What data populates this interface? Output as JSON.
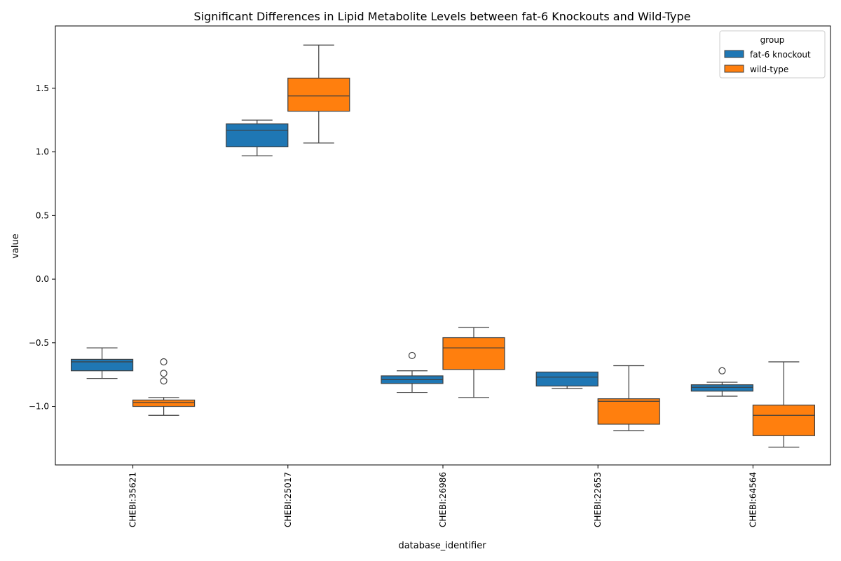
{
  "chart_data": {
    "type": "box",
    "title": "Significant Differences in Lipid Metabolite Levels between fat-6 Knockouts and Wild-Type",
    "xlabel": "database_identifier",
    "ylabel": "value",
    "ylim": [
      -1.46,
      1.99
    ],
    "yticks": [
      1.5,
      1.0,
      0.5,
      0.0,
      -0.5,
      -1.0
    ],
    "ytick_labels": [
      "1.5",
      "1.0",
      "0.5",
      "0.0",
      "−0.5",
      "−1.0"
    ],
    "categories": [
      "CHEBI:35621",
      "CHEBI:25017",
      "CHEBI:26986",
      "CHEBI:22653",
      "CHEBI:64564"
    ],
    "legend": {
      "title": "group",
      "position": "top-right"
    },
    "series": [
      {
        "name": "fat-6 knockout",
        "color": "#1f77b4",
        "boxes": [
          {
            "whislo": -0.78,
            "q1": -0.72,
            "med": -0.65,
            "q3": -0.63,
            "whishi": -0.54,
            "fliers": []
          },
          {
            "whislo": 0.97,
            "q1": 1.04,
            "med": 1.17,
            "q3": 1.22,
            "whishi": 1.25,
            "fliers": []
          },
          {
            "whislo": -0.89,
            "q1": -0.82,
            "med": -0.79,
            "q3": -0.76,
            "whishi": -0.72,
            "fliers": [
              -0.6
            ]
          },
          {
            "whislo": -0.86,
            "q1": -0.84,
            "med": -0.77,
            "q3": -0.73,
            "whishi": -0.73,
            "fliers": []
          },
          {
            "whislo": -0.92,
            "q1": -0.88,
            "med": -0.85,
            "q3": -0.83,
            "whishi": -0.81,
            "fliers": [
              -0.72
            ]
          }
        ]
      },
      {
        "name": "wild-type",
        "color": "#ff7f0e",
        "boxes": [
          {
            "whislo": -1.07,
            "q1": -1.0,
            "med": -0.97,
            "q3": -0.95,
            "whishi": -0.93,
            "fliers": [
              -0.65,
              -0.74,
              -0.8
            ]
          },
          {
            "whislo": 1.07,
            "q1": 1.32,
            "med": 1.44,
            "q3": 1.58,
            "whishi": 1.84,
            "fliers": []
          },
          {
            "whislo": -0.93,
            "q1": -0.71,
            "med": -0.54,
            "q3": -0.46,
            "whishi": -0.38,
            "fliers": []
          },
          {
            "whislo": -1.19,
            "q1": -1.14,
            "med": -0.96,
            "q3": -0.94,
            "whishi": -0.68,
            "fliers": []
          },
          {
            "whislo": -1.32,
            "q1": -1.23,
            "med": -1.07,
            "q3": -0.99,
            "whishi": -0.65,
            "fliers": []
          }
        ]
      }
    ]
  }
}
